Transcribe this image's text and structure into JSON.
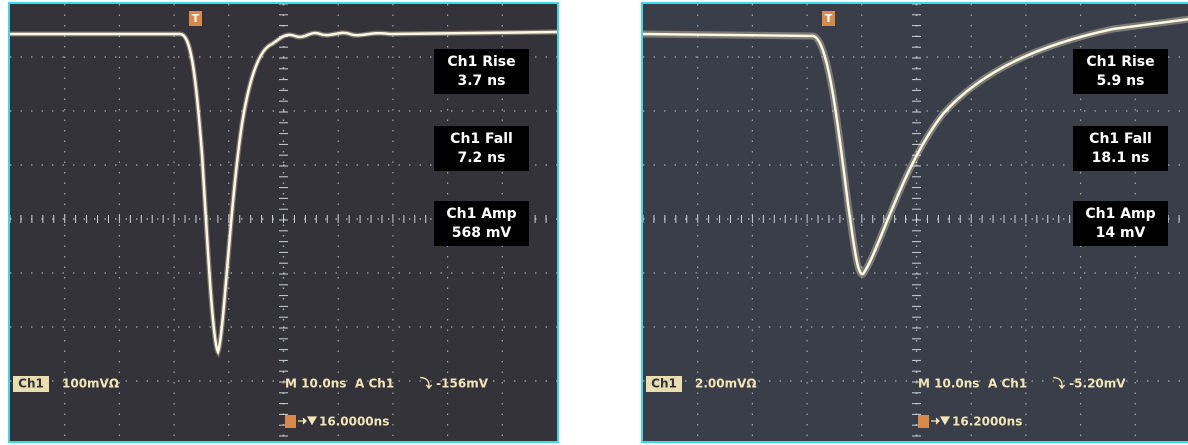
{
  "panels": [
    {
      "trigger_marker": "T",
      "measurements": [
        {
          "label": "Ch1 Rise",
          "value": "3.7 ns"
        },
        {
          "label": "Ch1 Fall",
          "value": "7.2 ns"
        },
        {
          "label": "Ch1 Amp",
          "value": "568 mV"
        }
      ],
      "channel": "Ch1",
      "scale": "100mVΩ",
      "timebase": "M 10.0ns",
      "trigger_source": "A  Ch1",
      "trigger_level": "⤵ -156mV",
      "position": "16.0000ns"
    },
    {
      "trigger_marker": "T",
      "measurements": [
        {
          "label": "Ch1 Rise",
          "value": "5.9 ns"
        },
        {
          "label": "Ch1 Fall",
          "value": "18.1 ns"
        },
        {
          "label": "Ch1 Amp",
          "value": "14 mV"
        }
      ],
      "channel": "Ch1",
      "scale": "2.00mVΩ",
      "timebase": "M 10.0ns",
      "trigger_source": "A  Ch1",
      "trigger_level": "⤵ -5.20mV",
      "position": "16.2000ns"
    }
  ]
}
